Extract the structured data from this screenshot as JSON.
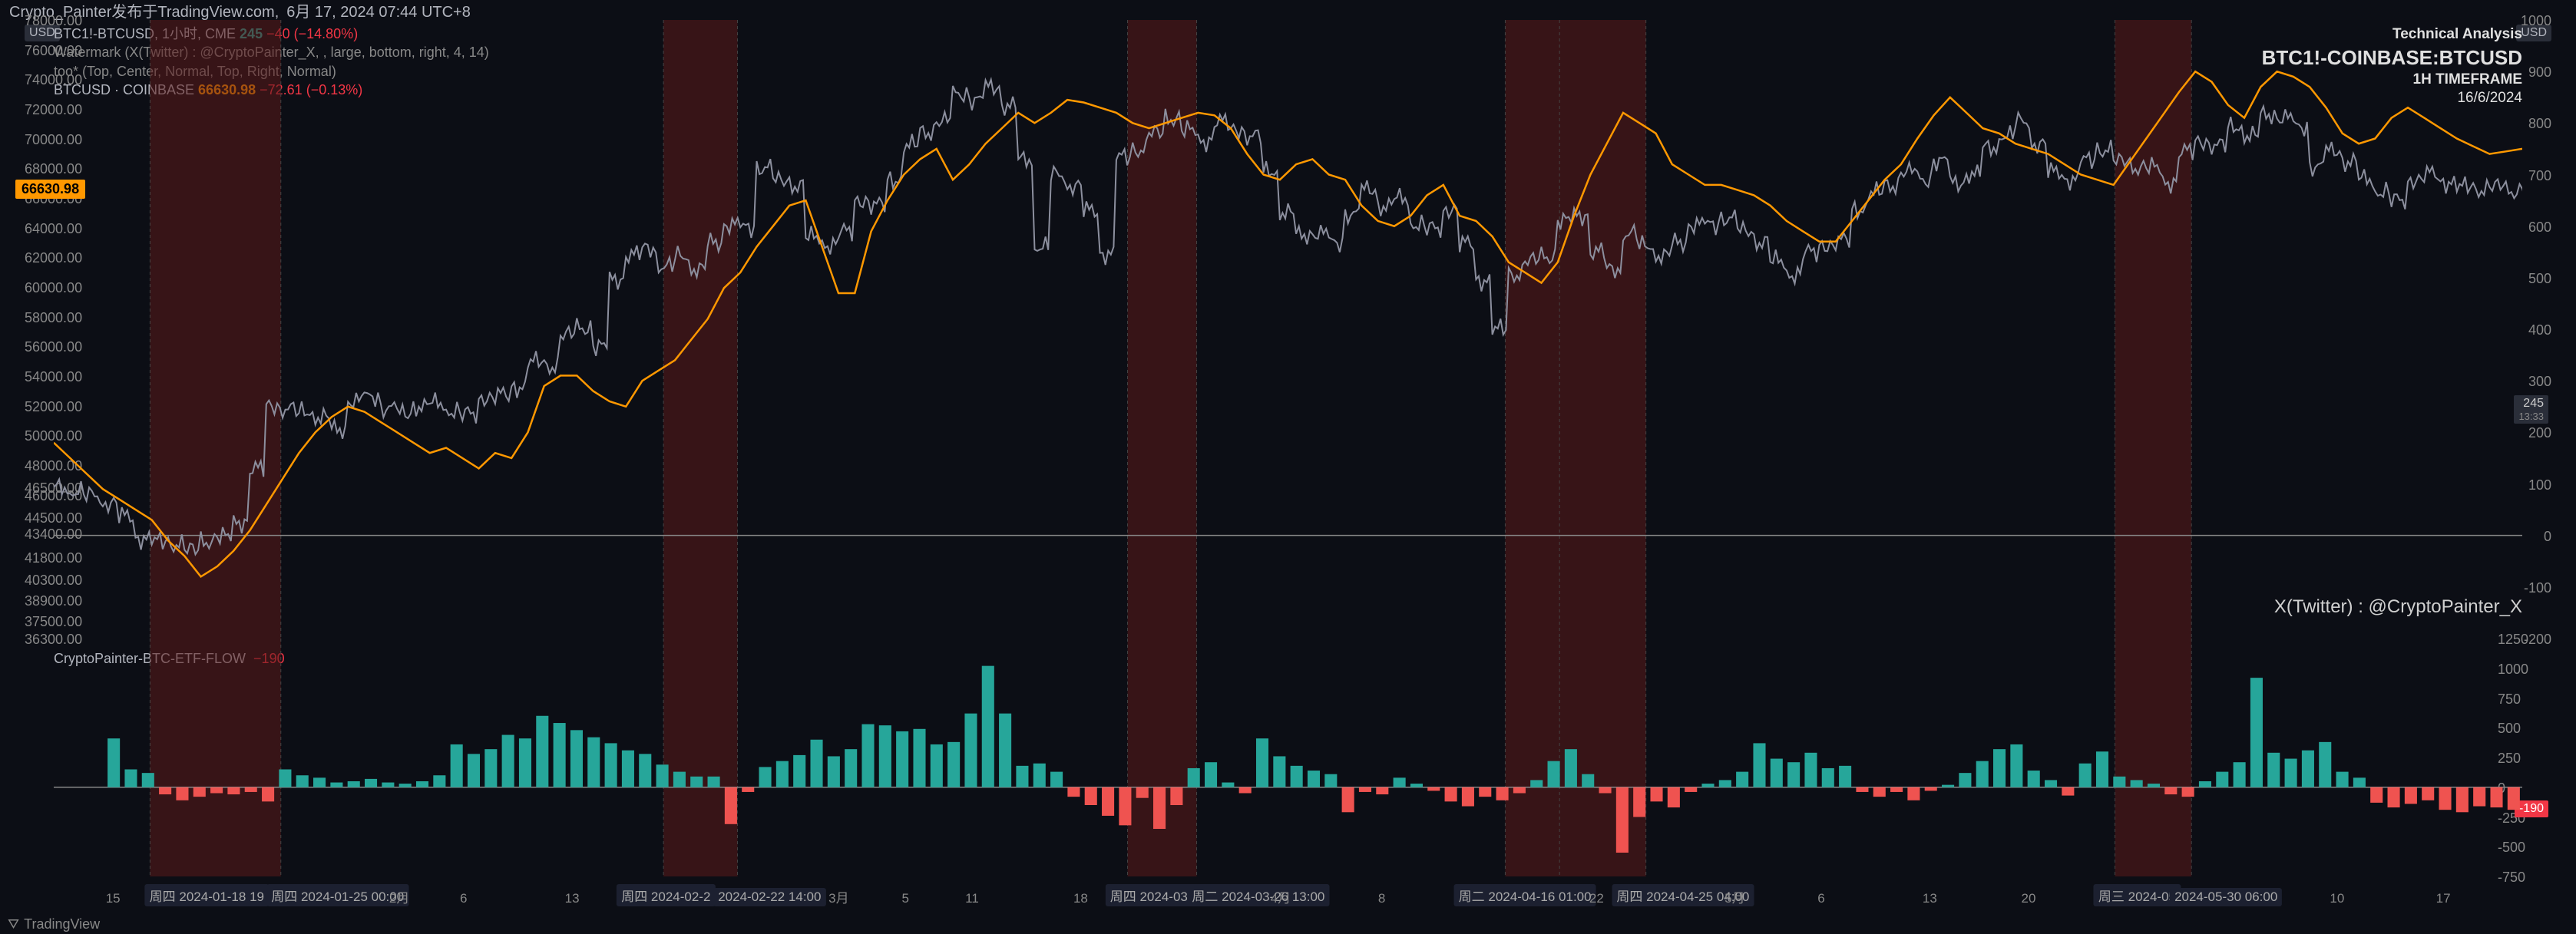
{
  "header": {
    "author": "Crypto_Painter发布于TradingView.com,",
    "timestamp": "6月 17, 2024 07:44 UTC+8"
  },
  "info": {
    "symbol_line": "BTC1!-BTCUSD, 1小时, CME",
    "val1": "245",
    "chg1": "−40 (−14.80%)",
    "watermark_line": "Watermark (X(Twitter) : @CryptoPainter_X, , large, bottom, right, 4, 14)",
    "too_line": "too* (Top, Center, Normal, Top, Right, Normal)",
    "sub_symbol": "BTCUSD · COINBASE",
    "sub_price": "66630.98",
    "sub_chg": "−72.61 (−0.13%)"
  },
  "titleblock": {
    "ta": "Technical Analysis",
    "sym": "BTC1!-COINBASE:BTCUSD",
    "tf": "1H TIMEFRAME",
    "date": "16/6/2024"
  },
  "watermark_text": "X(Twitter) : @CryptoPainter_X",
  "axis_badge": {
    "left_usd": "USD",
    "right_usd": "USD"
  },
  "main_chart": {
    "type": "line-dual-axis",
    "background_color": "#0c0e15",
    "price_color": "#8c8f9e",
    "overlay_color": "#ff9800",
    "y_left_min": 36300,
    "y_left_max": 78000,
    "y_left_ticks": [
      36300,
      37500,
      38900,
      40300,
      41800,
      43400,
      44500,
      46000,
      46500,
      48000,
      50000,
      52000,
      54000,
      56000,
      58000,
      60000,
      62000,
      64000,
      66000,
      68000,
      70000,
      72000,
      74000,
      76000,
      78000
    ],
    "y_left_labels": [
      "36300.00",
      "37500.00",
      "38900.00",
      "40300.00",
      "41800.00",
      "43400.00",
      "44500.00",
      "46000.00",
      "46500.00",
      "48000.00",
      "50000.00",
      "52000.00",
      "54000.00",
      "56000.00",
      "58000.00",
      "60000.00",
      "62000.00",
      "64000.00",
      "66000.00",
      "68000.00",
      "70000.00",
      "72000.00",
      "74000.00",
      "76000.00",
      "78000.00"
    ],
    "price_marker": "66630.98",
    "y_right_min": -200,
    "y_right_max": 1000,
    "y_right_ticks": [
      -200,
      -100,
      0,
      100,
      200,
      300,
      400,
      500,
      600,
      700,
      800,
      900,
      1000
    ],
    "right_marker_val": "245",
    "right_marker_sub": "13:33",
    "zero_right": 0,
    "red_bands_x": [
      [
        0.039,
        0.092
      ],
      [
        0.247,
        0.277
      ],
      [
        0.435,
        0.463
      ],
      [
        0.588,
        0.645
      ],
      [
        0.835,
        0.866
      ]
    ],
    "vlines_x": [
      0.039,
      0.092,
      0.247,
      0.277,
      0.435,
      0.463,
      0.588,
      0.61,
      0.645,
      0.835,
      0.866
    ],
    "price_series": [
      46500,
      46200,
      46000,
      45400,
      44600,
      43000,
      42900,
      42600,
      42300,
      42800,
      43200,
      44100,
      47800,
      52000,
      51800,
      51600,
      51200,
      50400,
      52300,
      52600,
      51800,
      51500,
      51900,
      52200,
      51600,
      51500,
      52500,
      52800,
      53200,
      55000,
      54600,
      56800,
      57200,
      56000,
      60500,
      62200,
      62600,
      61400,
      62100,
      61200,
      63000,
      64200,
      64000,
      68000,
      67200,
      66800,
      63400,
      62800,
      63800,
      65800,
      65600,
      67200,
      69600,
      70400,
      71200,
      73000,
      72600,
      73500,
      72200,
      68600,
      62700,
      67600,
      66800,
      65200,
      62200,
      68800,
      69200,
      70400,
      71300,
      70600,
      69800,
      71200,
      70600,
      70200,
      67800,
      65000,
      63500,
      63600,
      63000,
      64900,
      66600,
      65400,
      66000,
      64200,
      64000,
      65200,
      63000,
      60400,
      57200,
      60800,
      61800,
      62000,
      64500,
      64800,
      62400,
      61200,
      63600,
      62800,
      62100,
      63000,
      64200,
      64200,
      64600,
      63800,
      63000,
      61800,
      60800,
      62400,
      62800,
      63200,
      65200,
      66400,
      66800,
      67800,
      67200,
      68500,
      67000,
      67600,
      69400,
      70200,
      71200,
      69600,
      67800,
      67200,
      68600,
      69200,
      68500,
      68000,
      68100,
      67000,
      69200,
      69800,
      69600,
      70800,
      70200,
      71600,
      71400,
      70800,
      68100,
      69200,
      68400,
      67300,
      66400,
      65900,
      67200,
      67700,
      67000,
      66800,
      66500,
      66800,
      66400,
      66630
    ],
    "overlay_series": [
      180,
      150,
      120,
      90,
      70,
      50,
      30,
      -10,
      -40,
      -80,
      -60,
      -30,
      10,
      60,
      110,
      160,
      200,
      230,
      250,
      240,
      220,
      200,
      180,
      160,
      170,
      150,
      130,
      160,
      150,
      200,
      290,
      310,
      310,
      280,
      260,
      250,
      300,
      320,
      340,
      380,
      420,
      480,
      510,
      560,
      600,
      640,
      650,
      560,
      470,
      470,
      590,
      650,
      700,
      730,
      750,
      690,
      720,
      760,
      790,
      820,
      800,
      820,
      845,
      840,
      830,
      820,
      800,
      790,
      800,
      810,
      820,
      815,
      790,
      740,
      700,
      690,
      720,
      730,
      700,
      690,
      640,
      610,
      600,
      620,
      660,
      680,
      620,
      610,
      580,
      530,
      510,
      490,
      530,
      620,
      700,
      760,
      820,
      800,
      780,
      720,
      700,
      680,
      680,
      670,
      660,
      640,
      610,
      590,
      570,
      570,
      610,
      650,
      690,
      720,
      770,
      815,
      850,
      820,
      790,
      780,
      760,
      750,
      740,
      720,
      700,
      690,
      680,
      725,
      770,
      815,
      860,
      900,
      880,
      835,
      810,
      870,
      900,
      890,
      870,
      830,
      780,
      760,
      770,
      810,
      830,
      810,
      790,
      770,
      755,
      740,
      745,
      750
    ]
  },
  "lower_chart": {
    "type": "bar",
    "title": "CryptoPainter-BTC-ETF-FLOW",
    "value_label": "−190",
    "value_color": "#f23645",
    "pos_color": "#26a69a",
    "neg_color": "#ef5350",
    "y_min": -750,
    "y_max": 1250,
    "y_ticks": [
      -750,
      -500,
      -250,
      0,
      250,
      500,
      750,
      1000,
      1250
    ],
    "right_marker": "-190",
    "series": [
      0,
      0,
      0,
      410,
      150,
      120,
      -60,
      -110,
      -80,
      -50,
      -60,
      -40,
      -120,
      150,
      100,
      80,
      40,
      50,
      70,
      40,
      30,
      50,
      100,
      360,
      280,
      320,
      440,
      410,
      600,
      540,
      480,
      420,
      370,
      310,
      280,
      190,
      130,
      90,
      90,
      -310,
      -40,
      170,
      220,
      270,
      400,
      260,
      320,
      530,
      520,
      470,
      490,
      360,
      380,
      620,
      1020,
      620,
      180,
      200,
      130,
      -80,
      -150,
      -240,
      -320,
      -90,
      -350,
      -150,
      160,
      210,
      40,
      -50,
      410,
      260,
      180,
      140,
      110,
      -210,
      -40,
      -60,
      80,
      30,
      -30,
      -120,
      -160,
      -80,
      -110,
      -50,
      60,
      220,
      320,
      110,
      -50,
      -550,
      -250,
      -120,
      -170,
      -40,
      30,
      60,
      130,
      370,
      240,
      210,
      290,
      160,
      180,
      -40,
      -80,
      -40,
      -110,
      -30,
      20,
      120,
      220,
      320,
      360,
      140,
      60,
      -70,
      200,
      300,
      90,
      60,
      30,
      -60,
      -80,
      50,
      130,
      210,
      920,
      290,
      240,
      310,
      380,
      130,
      80,
      -130,
      -170,
      -140,
      -110,
      -190,
      -210,
      -160,
      -170,
      -190
    ]
  },
  "xaxis": {
    "ticks": [
      {
        "x": 0.024,
        "label": "15"
      },
      {
        "x": 0.062,
        "label": "周四 2024-01-18  19",
        "boxed": true
      },
      {
        "x": 0.115,
        "label": "周四 2024-01-25   00:00",
        "boxed": true
      },
      {
        "x": 0.14,
        "label": "2月"
      },
      {
        "x": 0.166,
        "label": "6"
      },
      {
        "x": 0.21,
        "label": "13"
      },
      {
        "x": 0.248,
        "label": "周四 2024-02-2",
        "boxed": true
      },
      {
        "x": 0.29,
        "label": "2024-02-22   14:00",
        "boxed": true
      },
      {
        "x": 0.318,
        "label": "3月"
      },
      {
        "x": 0.345,
        "label": "5"
      },
      {
        "x": 0.372,
        "label": "11"
      },
      {
        "x": 0.416,
        "label": "18"
      },
      {
        "x": 0.446,
        "label": "周四 2024-03-2",
        "boxed": true
      },
      {
        "x": 0.488,
        "label": "周二 2024-03-26   13:00",
        "boxed": true
      },
      {
        "x": 0.497,
        "label": "4月"
      },
      {
        "x": 0.538,
        "label": "8"
      },
      {
        "x": 0.596,
        "label": "周二 2024-04-16   01:00",
        "boxed": true
      },
      {
        "x": 0.625,
        "label": "22"
      },
      {
        "x": 0.66,
        "label": "周四 2024-04-25   04:00",
        "boxed": true
      },
      {
        "x": 0.681,
        "label": "5月"
      },
      {
        "x": 0.716,
        "label": "6"
      },
      {
        "x": 0.76,
        "label": "13"
      },
      {
        "x": 0.8,
        "label": "20"
      },
      {
        "x": 0.844,
        "label": "周三 2024-05",
        "boxed": true
      },
      {
        "x": 0.88,
        "label": "2024-05-30   06:00",
        "boxed": true
      },
      {
        "x": 0.925,
        "label": "10"
      },
      {
        "x": 0.968,
        "label": "17"
      }
    ]
  },
  "footer": {
    "logo": "TradingView"
  }
}
